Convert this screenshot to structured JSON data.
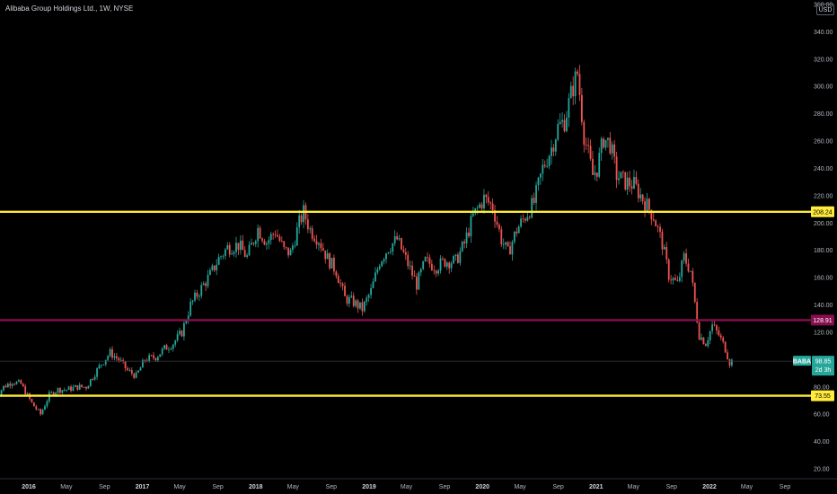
{
  "chart_data": {
    "type": "candlestick",
    "title": "Alibaba Group Holdings Ltd., 1W, NYSE",
    "currency": "USD",
    "symbol": "BABA",
    "last_price": "98.85",
    "countdown": "2d 3h",
    "ylim": [
      13,
      360
    ],
    "xlim": [
      "2015-09-14",
      "2022-11-20"
    ],
    "y_ticks": [
      "20.00",
      "40.00",
      "60.00",
      "80.00",
      "100.00",
      "120.00",
      "140.00",
      "160.00",
      "180.00",
      "200.00",
      "220.00",
      "240.00",
      "260.00",
      "280.00",
      "300.00",
      "320.00",
      "340.00",
      "360.00"
    ],
    "x_ticks": [
      {
        "label": "2016",
        "date": "2016-01-01",
        "year": true
      },
      {
        "label": "May",
        "date": "2016-05-01"
      },
      {
        "label": "Sep",
        "date": "2016-09-01"
      },
      {
        "label": "2017",
        "date": "2017-01-01",
        "year": true
      },
      {
        "label": "May",
        "date": "2017-05-01"
      },
      {
        "label": "Sep",
        "date": "2017-09-01"
      },
      {
        "label": "2018",
        "date": "2018-01-01",
        "year": true
      },
      {
        "label": "May",
        "date": "2018-05-01"
      },
      {
        "label": "Sep",
        "date": "2018-09-01"
      },
      {
        "label": "2019",
        "date": "2019-01-01",
        "year": true
      },
      {
        "label": "May",
        "date": "2019-05-01"
      },
      {
        "label": "Sep",
        "date": "2019-09-01"
      },
      {
        "label": "2020",
        "date": "2020-01-01",
        "year": true
      },
      {
        "label": "May",
        "date": "2020-05-01"
      },
      {
        "label": "Sep",
        "date": "2020-09-01"
      },
      {
        "label": "2021",
        "date": "2021-01-01",
        "year": true
      },
      {
        "label": "May",
        "date": "2021-05-01"
      },
      {
        "label": "Sep",
        "date": "2021-09-01"
      },
      {
        "label": "2022",
        "date": "2022-01-01",
        "year": true
      },
      {
        "label": "May",
        "date": "2022-05-01"
      },
      {
        "label": "Sep",
        "date": "2022-09-01"
      }
    ],
    "levels": [
      {
        "value": 208.24,
        "label": "208.24",
        "color": "#ffeb3b",
        "text_color": "#000000"
      },
      {
        "value": 128.91,
        "label": "128.91",
        "color": "#880e4f",
        "text_color": "#ffffff"
      },
      {
        "value": 73.55,
        "label": "73.55",
        "color": "#ffeb3b",
        "text_color": "#000000"
      }
    ],
    "price_line": {
      "value": 98.85,
      "color": "#26a69a"
    },
    "colors": {
      "up": "#26a69a",
      "down": "#ef5350",
      "background": "#000000",
      "axis_text": "#b2b5be"
    },
    "price_path": [
      [
        "2015-09-14",
        72
      ],
      [
        "2015-10-12",
        80
      ],
      [
        "2015-11-09",
        84
      ],
      [
        "2015-12-07",
        82
      ],
      [
        "2016-01-11",
        68
      ],
      [
        "2016-02-08",
        60
      ],
      [
        "2016-03-07",
        74
      ],
      [
        "2016-04-04",
        78
      ],
      [
        "2016-05-02",
        78
      ],
      [
        "2016-06-06",
        80
      ],
      [
        "2016-07-04",
        80
      ],
      [
        "2016-08-01",
        90
      ],
      [
        "2016-08-22",
        97
      ],
      [
        "2016-09-19",
        105
      ],
      [
        "2016-10-17",
        100
      ],
      [
        "2016-11-14",
        92
      ],
      [
        "2016-12-12",
        88
      ],
      [
        "2017-01-09",
        100
      ],
      [
        "2017-02-13",
        102
      ],
      [
        "2017-03-13",
        108
      ],
      [
        "2017-04-10",
        112
      ],
      [
        "2017-05-08",
        120
      ],
      [
        "2017-06-05",
        140
      ],
      [
        "2017-07-03",
        150
      ],
      [
        "2017-08-07",
        162
      ],
      [
        "2017-09-04",
        174
      ],
      [
        "2017-10-02",
        182
      ],
      [
        "2017-11-06",
        184
      ],
      [
        "2017-12-04",
        175
      ],
      [
        "2018-01-08",
        196
      ],
      [
        "2018-02-05",
        186
      ],
      [
        "2018-03-05",
        194
      ],
      [
        "2018-04-02",
        180
      ],
      [
        "2018-04-23",
        178
      ],
      [
        "2018-05-21",
        200
      ],
      [
        "2018-06-04",
        208
      ],
      [
        "2018-06-25",
        195
      ],
      [
        "2018-07-23",
        188
      ],
      [
        "2018-08-20",
        174
      ],
      [
        "2018-09-17",
        165
      ],
      [
        "2018-10-15",
        145
      ],
      [
        "2018-11-12",
        142
      ],
      [
        "2018-12-10",
        137
      ],
      [
        "2019-01-07",
        150
      ],
      [
        "2019-02-04",
        172
      ],
      [
        "2019-03-04",
        182
      ],
      [
        "2019-04-01",
        188
      ],
      [
        "2019-05-06",
        170
      ],
      [
        "2019-06-03",
        155
      ],
      [
        "2019-07-01",
        172
      ],
      [
        "2019-08-05",
        168
      ],
      [
        "2019-09-02",
        172
      ],
      [
        "2019-10-07",
        172
      ],
      [
        "2019-11-04",
        185
      ],
      [
        "2019-12-02",
        205
      ],
      [
        "2020-01-06",
        218
      ],
      [
        "2020-02-03",
        212
      ],
      [
        "2020-03-02",
        188
      ],
      [
        "2020-03-23",
        178
      ],
      [
        "2020-04-20",
        195
      ],
      [
        "2020-05-18",
        205
      ],
      [
        "2020-06-15",
        215
      ],
      [
        "2020-07-13",
        240
      ],
      [
        "2020-08-10",
        255
      ],
      [
        "2020-08-31",
        270
      ],
      [
        "2020-09-21",
        275
      ],
      [
        "2020-10-19",
        300
      ],
      [
        "2020-11-02",
        310
      ],
      [
        "2020-11-23",
        265
      ],
      [
        "2020-12-21",
        235
      ],
      [
        "2021-01-04",
        240
      ],
      [
        "2021-01-25",
        262
      ],
      [
        "2021-02-15",
        258
      ],
      [
        "2021-03-08",
        235
      ],
      [
        "2021-04-05",
        230
      ],
      [
        "2021-05-03",
        228
      ],
      [
        "2021-06-07",
        215
      ],
      [
        "2021-07-05",
        205
      ],
      [
        "2021-08-02",
        185
      ],
      [
        "2021-08-23",
        162
      ],
      [
        "2021-09-20",
        155
      ],
      [
        "2021-10-11",
        175
      ],
      [
        "2021-11-01",
        165
      ],
      [
        "2021-11-29",
        118
      ],
      [
        "2021-12-20",
        112
      ],
      [
        "2022-01-10",
        125
      ],
      [
        "2022-01-31",
        118
      ],
      [
        "2022-02-21",
        108
      ],
      [
        "2022-03-07",
        98
      ],
      [
        "2022-03-14",
        98.85
      ]
    ]
  }
}
